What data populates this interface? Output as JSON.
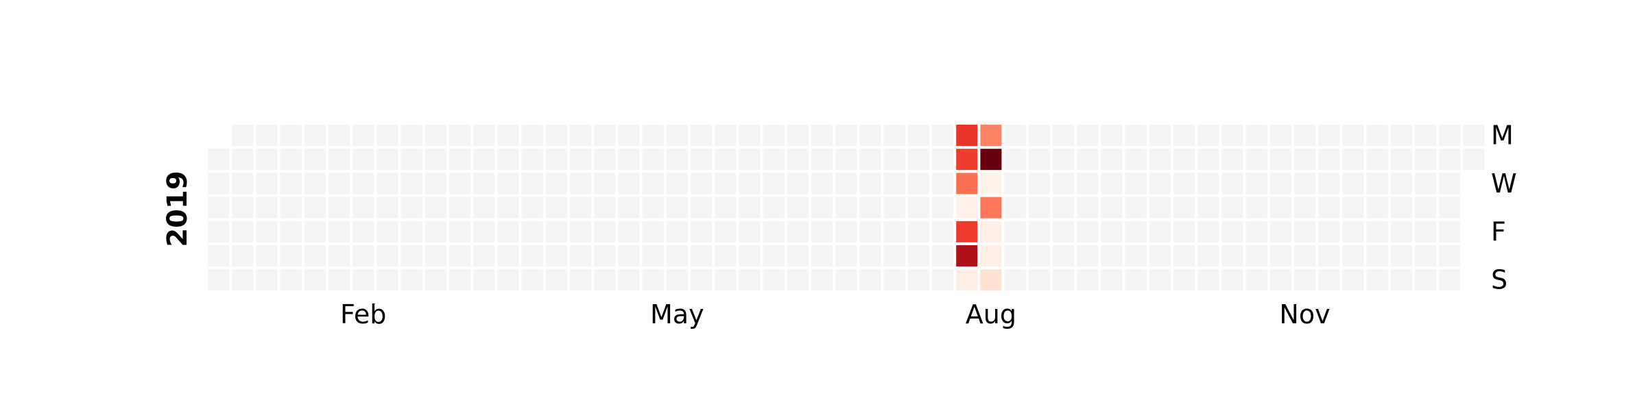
{
  "chart_data": {
    "type": "heatmap",
    "title": "",
    "year_label": "2019",
    "start_date": "2019-01-01",
    "end_date": "2019-12-31",
    "week_start": "Monday",
    "month_labels": [
      {
        "label": "Feb",
        "month": 2
      },
      {
        "label": "May",
        "month": 5
      },
      {
        "label": "Aug",
        "month": 8
      },
      {
        "label": "Nov",
        "month": 11
      }
    ],
    "day_labels": [
      {
        "label": "M",
        "weekday": 0
      },
      {
        "label": "W",
        "weekday": 2
      },
      {
        "label": "F",
        "weekday": 4
      },
      {
        "label": "S",
        "weekday": 6
      }
    ],
    "colormap": "Reds",
    "empty_color": "#f4f4f4",
    "value_range": [
      0,
      10
    ],
    "default_value": null,
    "values": [
      {
        "date": "2019-08-05",
        "value": 6.5
      },
      {
        "date": "2019-08-06",
        "value": 6.2
      },
      {
        "date": "2019-08-07",
        "value": 4.8
      },
      {
        "date": "2019-08-08",
        "value": 0.3
      },
      {
        "date": "2019-08-09",
        "value": 6.3
      },
      {
        "date": "2019-08-10",
        "value": 8.5
      },
      {
        "date": "2019-08-11",
        "value": 0.4
      },
      {
        "date": "2019-08-12",
        "value": 4.2
      },
      {
        "date": "2019-08-13",
        "value": 10.0
      },
      {
        "date": "2019-08-14",
        "value": 0.2
      },
      {
        "date": "2019-08-15",
        "value": 4.6
      },
      {
        "date": "2019-08-16",
        "value": 0.4
      },
      {
        "date": "2019-08-17",
        "value": 0.4
      },
      {
        "date": "2019-08-18",
        "value": 1.2
      }
    ]
  }
}
